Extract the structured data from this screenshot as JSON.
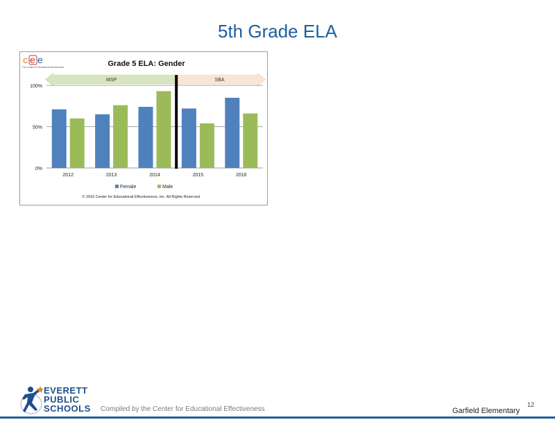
{
  "slide": {
    "title": "5th Grade ELA",
    "compiled_by": "Compiled by the Center for Educational Effectiveness",
    "school": "Garfield Elementary",
    "page_number": "12",
    "logo_lines": [
      "EVERETT",
      "PUBLIC",
      "SCHOOLS"
    ]
  },
  "cee_logo": {
    "letters": [
      "c",
      "e",
      "e"
    ],
    "tagline": "The Center for Educational Effectiveness"
  },
  "chart_data": {
    "type": "bar",
    "title": "Grade 5 ELA: Gender",
    "categories": [
      "2012",
      "2013",
      "2014",
      "2015",
      "2016"
    ],
    "series": [
      {
        "name": "Female",
        "values": [
          71,
          65,
          74,
          72,
          85
        ],
        "color": "#4f81bd"
      },
      {
        "name": "Male",
        "values": [
          60,
          76,
          93,
          54,
          66
        ],
        "color": "#9bbb59"
      }
    ],
    "ylim": [
      0,
      100
    ],
    "yticks": [
      "0%",
      "50%",
      "100%"
    ],
    "ytick_values": [
      0,
      50,
      100
    ],
    "grid": true,
    "legend": "bottom",
    "periods": [
      {
        "label": "MSP",
        "color": "#d7e4bd"
      },
      {
        "label": "SBA",
        "color": "#fbe3d6"
      }
    ],
    "divider_after": "2014",
    "copyright": "© 2016 Center for Educational Effectiveness, Inc. All Rights Reserved."
  }
}
